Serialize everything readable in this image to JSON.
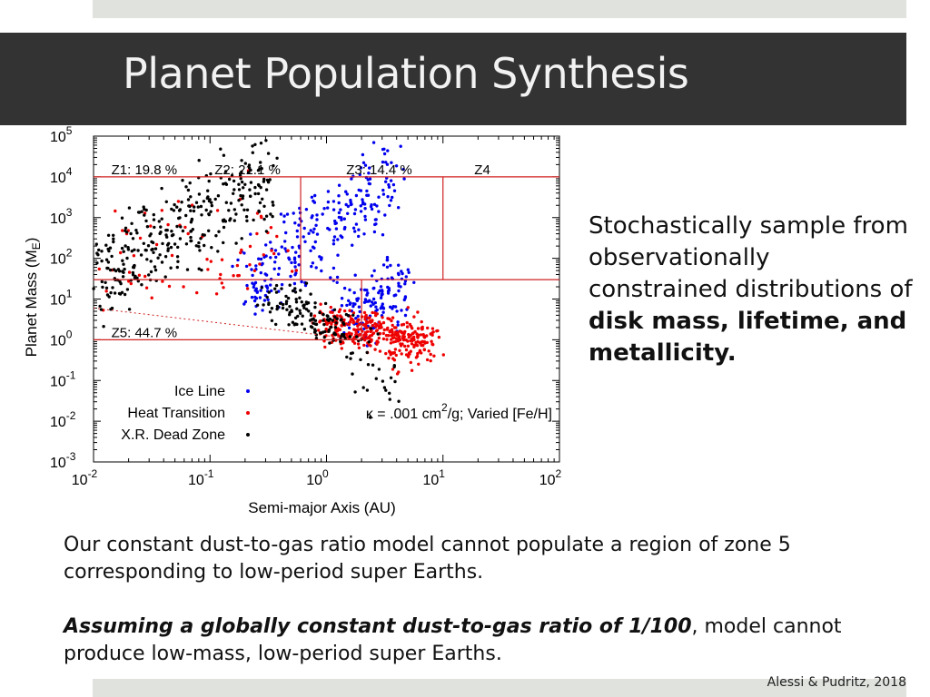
{
  "slide": {
    "title": "Planet Population Synthesis",
    "side_text": {
      "normal": "Stochastically sample from observationally constrained distributions of ",
      "bold": "disk mass, lifetime, and metallicity."
    },
    "paragraph1": "Our constant dust-to-gas ratio model cannot populate a region of zone 5 corresponding to low-period super Earths.",
    "paragraph2": {
      "emph": "Assuming a globally constant dust-to-gas ratio of 1/100",
      "rest": ", model cannot produce low-mass, low-period super Earths."
    },
    "citation": "Alessi & Pudritz, 2018"
  },
  "chart_data": {
    "type": "scatter",
    "title": "",
    "xlabel": "Semi-major Axis (AU)",
    "ylabel_main": "Planet Mass (M",
    "ylabel_sub": "E",
    "ylabel_end": ")",
    "xscale": "log",
    "yscale": "log",
    "xlim": [
      0.01,
      100
    ],
    "ylim": [
      0.001,
      100000
    ],
    "x_tick_exponents": [
      "-2",
      "-1",
      "0",
      "1",
      "2"
    ],
    "y_tick_exponents": [
      "5",
      "4",
      "3",
      "2",
      "1",
      "0",
      "-1",
      "-2",
      "-3"
    ],
    "tick_base": "10",
    "annotation": {
      "prefix": "κ = .001 cm",
      "sup": "2",
      "suffix": "/g; Varied [Fe/H]"
    },
    "zones": [
      {
        "label": "Z1: 19.8 %",
        "at": [
          0.013,
          10000
        ]
      },
      {
        "label": "Z2: 21.1 %",
        "at": [
          0.1,
          10000
        ]
      },
      {
        "label": "Z3: 14.4 %",
        "at": [
          1.35,
          10000
        ]
      },
      {
        "label": "Z4",
        "at": [
          17,
          10000
        ]
      },
      {
        "label": "Z5: 44.7 %",
        "at": [
          0.013,
          1
        ]
      }
    ],
    "zone_lines": [
      {
        "x": [
          0.01,
          100
        ],
        "y": [
          10000,
          10000
        ]
      },
      {
        "x": [
          0.01,
          100
        ],
        "y": [
          30,
          30
        ]
      },
      {
        "x": [
          0.01,
          2
        ],
        "y": [
          1,
          1
        ]
      },
      {
        "x": [
          0.6,
          0.6
        ],
        "y": [
          30,
          10000
        ]
      },
      {
        "x": [
          10,
          10
        ],
        "y": [
          30,
          10000
        ]
      },
      {
        "x": [
          2,
          2
        ],
        "y": [
          1,
          30
        ]
      }
    ],
    "dotted_line": {
      "x": [
        0.01,
        2
      ],
      "y": [
        6,
        1
      ]
    },
    "legend_position": "bottom-left",
    "series": [
      {
        "name": "Ice Line",
        "color": "#0000ee",
        "clusters": [
          {
            "x": [
              0.2,
              4.0
            ],
            "y": [
              20,
              8000
            ],
            "slope": 1.0,
            "spread": 0.28,
            "n": 260
          },
          {
            "x": [
              1.3,
              4.8
            ],
            "y": [
              3,
              20
            ],
            "slope": 0,
            "spread": 0.22,
            "n": 140
          }
        ]
      },
      {
        "name": "Heat Transition",
        "color": "#ee0000",
        "clusters": [
          {
            "x": [
              0.012,
              0.5
            ],
            "y": [
              40,
              400
            ],
            "slope": 0.5,
            "spread": 0.35,
            "n": 70
          },
          {
            "x": [
              0.9,
              8.0
            ],
            "y": [
              2.5,
              1.0
            ],
            "slope": 0,
            "spread": 0.12,
            "n": 330
          },
          {
            "x": [
              3.0,
              8.0
            ],
            "y": [
              0.3,
              1.0
            ],
            "slope": 0,
            "spread": 0.2,
            "n": 40
          }
        ]
      },
      {
        "name": "X.R. Dead Zone",
        "color": "#000000",
        "clusters": [
          {
            "x": [
              0.011,
              0.35
            ],
            "y": [
              40,
              10000
            ],
            "slope": 1.3,
            "spread": 0.3,
            "n": 320
          },
          {
            "x": [
              0.3,
              1.6
            ],
            "y": [
              12,
              1.5
            ],
            "slope": 0,
            "spread": 0.15,
            "n": 130
          },
          {
            "x": [
              1.5,
              4.0
            ],
            "y": [
              0.5,
              0.06
            ],
            "slope": 0,
            "spread": 0.25,
            "n": 30
          }
        ]
      }
    ]
  }
}
